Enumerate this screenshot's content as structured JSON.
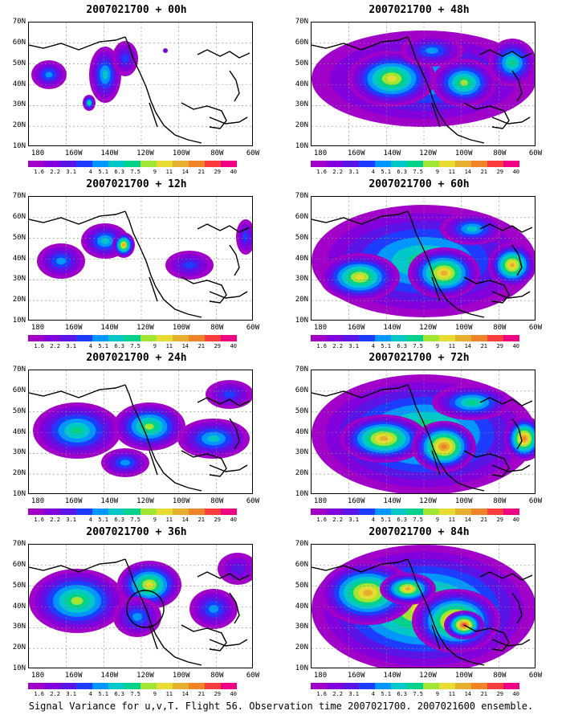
{
  "caption": "Signal Variance for u,v,T. Flight 56. Observation time 2007021700. 2007021600 ensemble.",
  "y_tick_labels": [
    "70N",
    "60N",
    "50N",
    "40N",
    "30N",
    "20N",
    "10N"
  ],
  "x_tick_labels": [
    "180",
    "160W",
    "140W",
    "120W",
    "100W",
    "80W",
    "60W"
  ],
  "colorbar": {
    "labels": [
      "1.6",
      "2.2",
      "3.1",
      "4",
      "5.1",
      "6.3",
      "7.5",
      "9",
      "11",
      "14",
      "21",
      "29",
      "40"
    ],
    "colors": [
      "#a000c8",
      "#8200dc",
      "#5a14e6",
      "#1e3cff",
      "#0096ff",
      "#00c8c8",
      "#00d28c",
      "#a0e632",
      "#e6dc32",
      "#e6af2d",
      "#f08228",
      "#fa3c3c",
      "#f00082"
    ]
  },
  "panels": [
    {
      "title": "2007021700 + 00h",
      "column": "left",
      "row": 0
    },
    {
      "title": "2007021700 + 12h",
      "column": "left",
      "row": 1
    },
    {
      "title": "2007021700 + 24h",
      "column": "left",
      "row": 2
    },
    {
      "title": "2007021700 + 36h",
      "column": "left",
      "row": 3
    },
    {
      "title": "2007021700 + 48h",
      "column": "right",
      "row": 0
    },
    {
      "title": "2007021700 + 60h",
      "column": "right",
      "row": 1
    },
    {
      "title": "2007021700 + 72h",
      "column": "right",
      "row": 2
    },
    {
      "title": "2007021700 + 84h",
      "column": "right",
      "row": 3
    }
  ]
}
